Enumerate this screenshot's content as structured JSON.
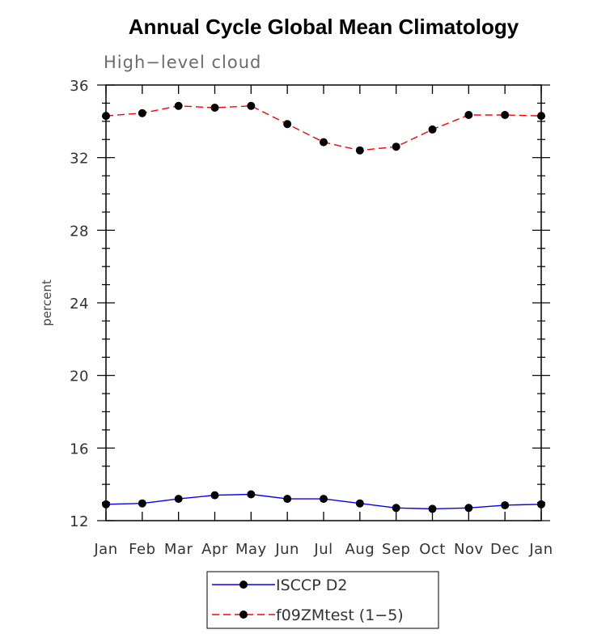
{
  "chart_data": {
    "type": "line",
    "title": "Annual Cycle Global Mean Climatology",
    "subtitle": "High−level cloud",
    "xlabel": "",
    "ylabel": "percent",
    "categories": [
      "Jan",
      "Feb",
      "Mar",
      "Apr",
      "May",
      "Jun",
      "Jul",
      "Aug",
      "Sep",
      "Oct",
      "Nov",
      "Dec",
      "Jan"
    ],
    "yticks": [
      "12",
      "16",
      "20",
      "24",
      "28",
      "32",
      "36"
    ],
    "ylim": [
      12,
      36
    ],
    "series": [
      {
        "name": "ISCCP D2",
        "color": "#0000ff",
        "dash": "solid",
        "values": [
          12.9,
          12.95,
          13.2,
          13.4,
          13.45,
          13.2,
          13.2,
          12.95,
          12.7,
          12.65,
          12.7,
          12.85,
          12.9
        ]
      },
      {
        "name": "f09ZMtest (1−5)",
        "color": "#ff0000",
        "dash": "dashed",
        "values": [
          34.3,
          34.45,
          34.85,
          34.75,
          34.85,
          33.85,
          32.85,
          32.4,
          32.6,
          33.55,
          34.35,
          34.35,
          34.3
        ]
      }
    ],
    "legend_position": "bottom-center",
    "grid": false
  }
}
